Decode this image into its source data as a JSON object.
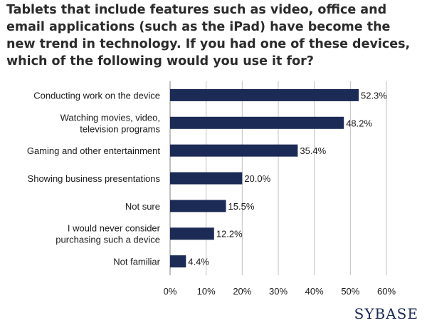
{
  "colors": {
    "bar": "#1c2b55",
    "gridline": "#bfbfbf",
    "axis": "#7f7f7f",
    "text": "#1a1a1a"
  },
  "logo_text": "SYBASE",
  "chart_data": {
    "type": "bar",
    "orientation": "horizontal",
    "title": "Tablets that include features such as video, office and email applications (such as the iPad) have become the new trend in technology. If you had one of these devices, which of the following would you use it for?",
    "categories": [
      [
        "Conducting work on the device"
      ],
      [
        "Watching movies, video,",
        "television programs"
      ],
      [
        "Gaming and other entertainment"
      ],
      [
        "Showing business presentations"
      ],
      [
        "Not sure"
      ],
      [
        "I would never consider",
        "purchasing such a device"
      ],
      [
        "Not familiar"
      ]
    ],
    "values": [
      52.3,
      48.2,
      35.4,
      20.0,
      15.5,
      12.2,
      4.4
    ],
    "value_labels": [
      "52.3%",
      "48.2%",
      "35.4%",
      "20.0%",
      "15.5%",
      "12.2%",
      "4.4%"
    ],
    "xlim": [
      0,
      60
    ],
    "x_ticks": [
      0,
      10,
      20,
      30,
      40,
      50,
      60
    ],
    "x_tick_labels": [
      "0%",
      "10%",
      "20%",
      "30%",
      "40%",
      "50%",
      "60%"
    ],
    "grid": true,
    "legend": "none"
  }
}
